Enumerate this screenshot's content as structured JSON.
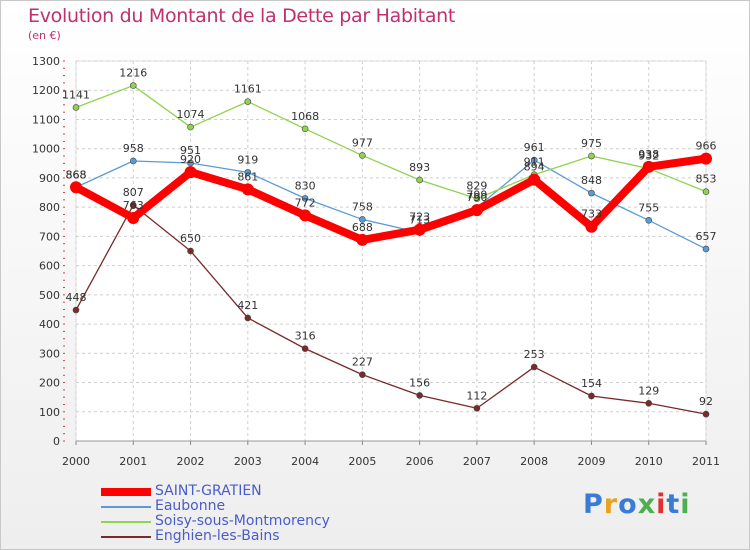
{
  "title": "Evolution du Montant de la Dette par Habitant",
  "unit": "(en €)",
  "logo": {
    "text": "Proxiti",
    "colors": [
      "#3a7bd5",
      "#e8a21c",
      "#3a7bd5",
      "#4caf50",
      "#e03030",
      "#3a7bd5",
      "#4caf50"
    ]
  },
  "chart_data": {
    "type": "line",
    "categories": [
      "2000",
      "2001",
      "2002",
      "2003",
      "2004",
      "2005",
      "2006",
      "2007",
      "2008",
      "2009",
      "2010",
      "2011"
    ],
    "ylim": [
      0,
      1300
    ],
    "yticks": [
      "0",
      "100",
      "200",
      "300",
      "400",
      "500",
      "600",
      "700",
      "800",
      "900",
      "1000",
      "1100",
      "1200",
      "1300"
    ],
    "grid": true,
    "legend_position": "bottom-left",
    "series": [
      {
        "name": "SAINT-GRATIEN",
        "color": "#ff0000",
        "emphasis": true,
        "values": [
          868,
          763,
          920,
          861,
          772,
          688,
          723,
          790,
          894,
          733,
          938,
          966
        ],
        "labels": [
          "868",
          "763",
          "920",
          "861",
          "772",
          "688",
          "723",
          "790",
          "894",
          "733",
          "938",
          "966"
        ]
      },
      {
        "name": "Eaubonne",
        "color": "#5b9bd5",
        "emphasis": false,
        "values": [
          868,
          958,
          951,
          919,
          830,
          758,
          713,
          799,
          961,
          848,
          755,
          657
        ],
        "labels": [
          "868",
          "958",
          "951",
          "919",
          "830",
          "758",
          "713",
          "799",
          "961",
          "848",
          "755",
          "657"
        ]
      },
      {
        "name": "Soisy-sous-Montmorency",
        "color": "#8fd34f",
        "emphasis": false,
        "values": [
          1141,
          1216,
          1074,
          1161,
          1068,
          977,
          893,
          829,
          911,
          975,
          932,
          853
        ],
        "labels": [
          "1141",
          "1216",
          "1074",
          "1161",
          "1068",
          "977",
          "893",
          "829",
          "911",
          "975",
          "932",
          "853"
        ]
      },
      {
        "name": "Enghien-les-Bains",
        "color": "#7a2a2a",
        "emphasis": false,
        "values": [
          448,
          807,
          650,
          421,
          316,
          227,
          156,
          112,
          253,
          154,
          129,
          92
        ],
        "labels": [
          "448",
          "807",
          "650",
          "421",
          "316",
          "227",
          "156",
          "112",
          "253",
          "154",
          "129",
          "92"
        ]
      }
    ]
  }
}
